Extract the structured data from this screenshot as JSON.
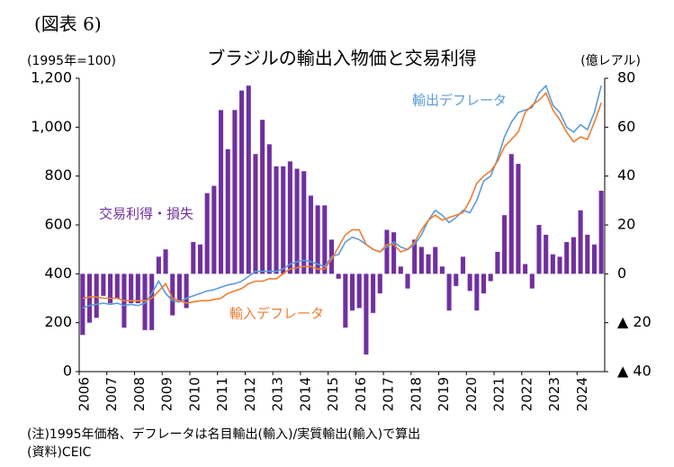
{
  "chart_data": {
    "type": "combo",
    "label": "(図表 6)",
    "title": "ブラジルの輸出入物価と交易利得",
    "y_label": "(1995年=100)",
    "y2_label": "(億レアル)",
    "notes": [
      "(注)1995年価格、デフレータは名目輸出(輸入)/実質輸出(輸入)で算出",
      "(資料)CEIC"
    ],
    "categories": [
      "2006",
      null,
      null,
      null,
      "2007",
      null,
      null,
      null,
      "2008",
      null,
      null,
      null,
      "2009",
      null,
      null,
      null,
      "2010",
      null,
      null,
      null,
      "2011",
      null,
      null,
      null,
      "2012",
      null,
      null,
      null,
      "2013",
      null,
      null,
      null,
      "2014",
      null,
      null,
      null,
      "2015",
      null,
      null,
      null,
      "2016",
      null,
      null,
      null,
      "2017",
      null,
      null,
      null,
      "2018",
      null,
      null,
      null,
      "2019",
      null,
      null,
      null,
      "2020",
      null,
      null,
      null,
      "2021",
      null,
      null,
      null,
      "2022",
      null,
      null,
      null,
      "2023",
      null,
      null,
      null,
      "2024",
      null,
      null,
      null
    ],
    "ylim": [
      0,
      1200
    ],
    "yticks": [
      0,
      200,
      400,
      600,
      800,
      {
        "value": 1000,
        "label": "1,000"
      },
      {
        "value": 1200,
        "label": "1,200"
      }
    ],
    "y2lim": [
      -40,
      80
    ],
    "y2ticks": [
      {
        "value": -40,
        "label": "▲ 40"
      },
      {
        "value": -20,
        "label": "▲ 20"
      },
      0,
      20,
      40,
      60,
      80
    ],
    "series": [
      {
        "name": "交易利得・損失",
        "type": "bar",
        "axis": "y2",
        "color": "#7030a0",
        "values": [
          -25,
          -20,
          -18,
          -9,
          -12,
          -10,
          -22,
          -12,
          -12,
          -23,
          -23,
          7,
          10,
          -17,
          -11,
          -14,
          13,
          12,
          33,
          36,
          67,
          51,
          67,
          75,
          77,
          49,
          63,
          53,
          44,
          44,
          46,
          43,
          42,
          32,
          28,
          28,
          14,
          -2,
          -22,
          -15,
          -14,
          -33,
          -16,
          -8,
          18,
          17,
          3,
          -6,
          14,
          11,
          8,
          11,
          3,
          -15,
          -5,
          7,
          -7,
          -15,
          -8,
          -3,
          9,
          24,
          49,
          45,
          4,
          -6,
          20,
          16,
          8,
          7,
          13,
          15,
          26,
          16,
          12,
          34
        ]
      },
      {
        "name": "輸出デフレータ",
        "type": "line",
        "color": "#5b9bd5",
        "values": [
          260,
          270,
          275,
          280,
          275,
          280,
          270,
          275,
          270,
          280,
          320,
          370,
          320,
          290,
          285,
          300,
          310,
          320,
          330,
          335,
          345,
          355,
          360,
          370,
          390,
          410,
          410,
          410,
          410,
          420,
          440,
          450,
          455,
          450,
          440,
          430,
          470,
          480,
          530,
          550,
          540,
          520,
          500,
          490,
          510,
          530,
          510,
          500,
          520,
          560,
          620,
          660,
          640,
          610,
          630,
          660,
          650,
          700,
          780,
          800,
          870,
          960,
          1020,
          1060,
          1070,
          1080,
          1140,
          1170,
          1090,
          1060,
          1000,
          980,
          1010,
          990,
          1060,
          1170
        ]
      },
      {
        "name": "輸入デフレータ",
        "type": "line",
        "color": "#ed7d31",
        "values": [
          300,
          305,
          305,
          300,
          300,
          300,
          290,
          290,
          290,
          290,
          300,
          330,
          360,
          300,
          290,
          280,
          285,
          290,
          290,
          295,
          300,
          320,
          330,
          340,
          360,
          370,
          370,
          380,
          380,
          400,
          420,
          425,
          430,
          430,
          420,
          420,
          460,
          510,
          560,
          580,
          580,
          520,
          500,
          490,
          520,
          520,
          490,
          500,
          530,
          580,
          620,
          640,
          620,
          630,
          640,
          650,
          700,
          770,
          800,
          820,
          860,
          920,
          950,
          980,
          1060,
          1090,
          1110,
          1140,
          1070,
          1030,
          980,
          940,
          960,
          950,
          1020,
          1100
        ]
      }
    ]
  }
}
